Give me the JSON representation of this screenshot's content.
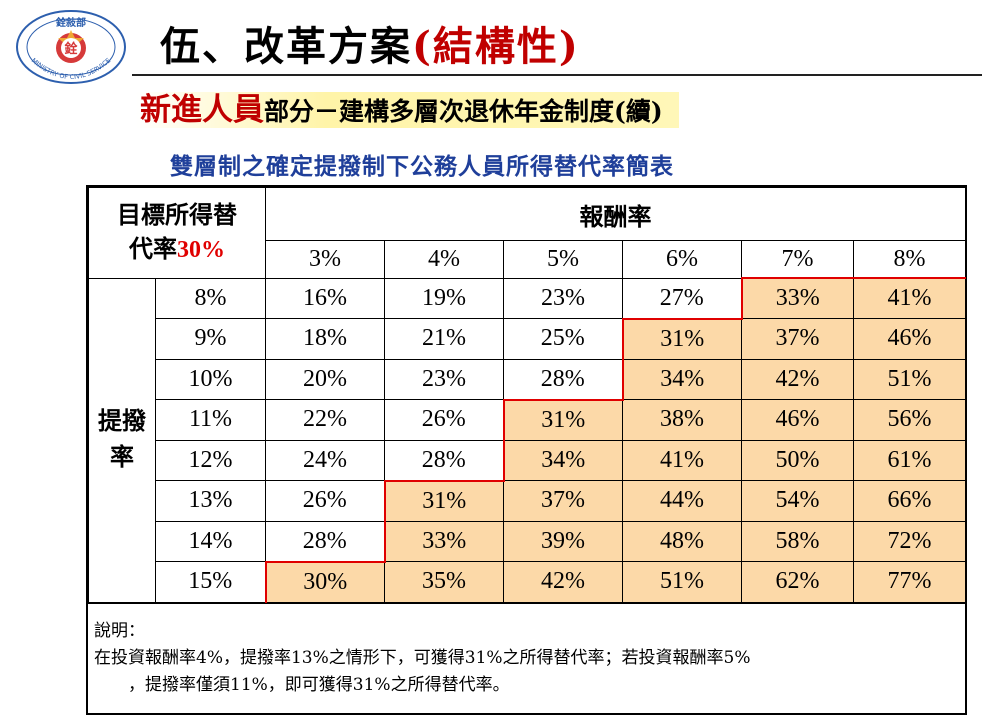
{
  "header": {
    "logo_text_top": "銓敍部",
    "logo_text_ring": "MINISTRY OF CIVIL SERVICE",
    "logo_center": "銓",
    "title_main": "伍、改革方案",
    "title_paren": "(結構性)",
    "subtitle_highlight": "新進人員",
    "subtitle_rest": "部分－建構多層次退休年金制度(續)",
    "caption": "雙層制之確定提撥制下公務人員所得替代率簡表"
  },
  "table": {
    "corner_line1": "目標所得替",
    "corner_line2": "代率",
    "corner_pct": "30%",
    "col_group_label": "報酬率",
    "row_group_label_1": "提撥",
    "row_group_label_2": "率",
    "columns": [
      "3%",
      "4%",
      "5%",
      "6%",
      "7%",
      "8%"
    ],
    "rows": [
      {
        "rate": "8%",
        "cells": [
          "16%",
          "19%",
          "23%",
          "27%",
          "33%",
          "41%"
        ]
      },
      {
        "rate": "9%",
        "cells": [
          "18%",
          "21%",
          "25%",
          "31%",
          "37%",
          "46%"
        ]
      },
      {
        "rate": "10%",
        "cells": [
          "20%",
          "23%",
          "28%",
          "34%",
          "42%",
          "51%"
        ]
      },
      {
        "rate": "11%",
        "cells": [
          "22%",
          "26%",
          "31%",
          "38%",
          "46%",
          "56%"
        ]
      },
      {
        "rate": "12%",
        "cells": [
          "24%",
          "28%",
          "34%",
          "41%",
          "50%",
          "61%"
        ]
      },
      {
        "rate": "13%",
        "cells": [
          "26%",
          "31%",
          "37%",
          "44%",
          "54%",
          "66%"
        ]
      },
      {
        "rate": "14%",
        "cells": [
          "28%",
          "33%",
          "39%",
          "48%",
          "58%",
          "72%"
        ]
      },
      {
        "rate": "15%",
        "cells": [
          "30%",
          "35%",
          "42%",
          "51%",
          "62%",
          "77%"
        ]
      }
    ],
    "highlight_threshold_pct": 30,
    "highlight_color": "#fcd9a8",
    "boundary_color": "#e00000"
  },
  "notes": {
    "heading": "說明：",
    "line1": "在投資報酬率4%，提撥率13%之情形下，可獲得31%之所得替代率；若投資報酬率5%",
    "line2": "，提撥率僅須11%，即可獲得31%之所得替代率。"
  }
}
